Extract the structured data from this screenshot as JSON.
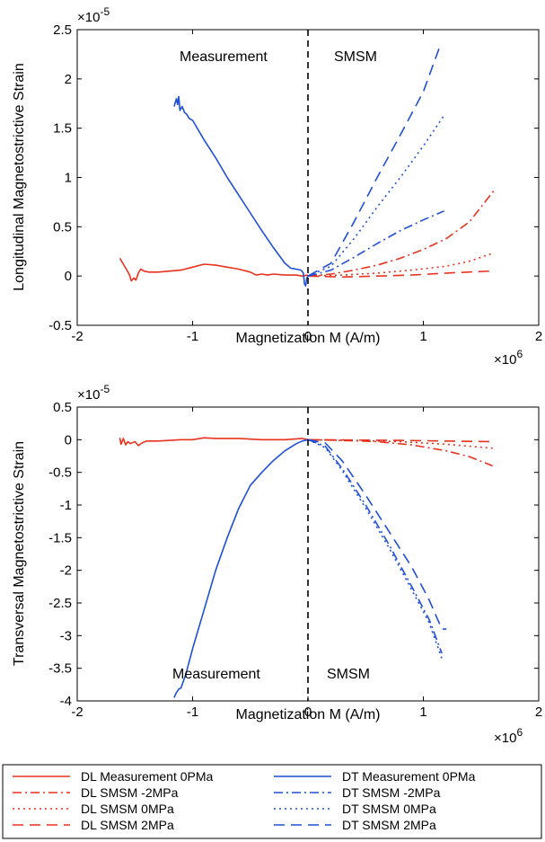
{
  "chart_data": [
    {
      "type": "line",
      "xlabel": "Magnetization M (A/m)",
      "ylabel": "Longitudinal Magnetostrictive Strain",
      "x_exponent_label": "×10",
      "x_exponent_power": "6",
      "y_exponent_label": "×10",
      "y_exponent_power": "-5",
      "xlim": [
        -2,
        2
      ],
      "ylim": [
        -0.5,
        2.5
      ],
      "xticks": [
        "-2",
        "-1",
        "0",
        "1",
        "2"
      ],
      "yticks": [
        "-0.5",
        "0",
        "0.5",
        "1",
        "1.5",
        "2",
        "2.5"
      ],
      "xtick_values": [
        -2,
        -1,
        0,
        1,
        2
      ],
      "ytick_values": [
        -0.5,
        0,
        0.5,
        1,
        1.5,
        2,
        2.5
      ],
      "annotations": {
        "left": "Measurement",
        "right": "SMSM"
      },
      "series": [
        {
          "name": "DL Measurement 0PMa",
          "color": "#e8321e",
          "dash": "solid",
          "points": [
            [
              -1.63,
              0.18
            ],
            [
              -1.6,
              0.12
            ],
            [
              -1.57,
              0.06
            ],
            [
              -1.55,
              0.02
            ],
            [
              -1.53,
              -0.05
            ],
            [
              -1.51,
              -0.02
            ],
            [
              -1.49,
              -0.04
            ],
            [
              -1.47,
              0.03
            ],
            [
              -1.45,
              0.07
            ],
            [
              -1.42,
              0.05
            ],
            [
              -1.38,
              0.04
            ],
            [
              -1.3,
              0.04
            ],
            [
              -1.2,
              0.05
            ],
            [
              -1.1,
              0.06
            ],
            [
              -1.0,
              0.09
            ],
            [
              -0.9,
              0.12
            ],
            [
              -0.8,
              0.11
            ],
            [
              -0.7,
              0.09
            ],
            [
              -0.6,
              0.07
            ],
            [
              -0.5,
              0.04
            ],
            [
              -0.45,
              0.01
            ],
            [
              -0.4,
              0.02
            ],
            [
              -0.35,
              0.01
            ],
            [
              -0.3,
              0.02
            ],
            [
              -0.2,
              0.01
            ],
            [
              -0.1,
              0.01
            ],
            [
              -0.05,
              0.0
            ],
            [
              0,
              0.01
            ]
          ]
        },
        {
          "name": "DL SMSM -2MPa",
          "color": "#e8321e",
          "dash": "dashdot",
          "points": [
            [
              0,
              0
            ],
            [
              0.2,
              0.02
            ],
            [
              0.4,
              0.06
            ],
            [
              0.6,
              0.11
            ],
            [
              0.8,
              0.18
            ],
            [
              1.0,
              0.27
            ],
            [
              1.2,
              0.38
            ],
            [
              1.4,
              0.55
            ],
            [
              1.62,
              0.88
            ]
          ]
        },
        {
          "name": "DL SMSM 0MPa",
          "color": "#e8321e",
          "dash": "dotted",
          "points": [
            [
              0,
              0
            ],
            [
              0.3,
              0.01
            ],
            [
              0.6,
              0.03
            ],
            [
              0.9,
              0.06
            ],
            [
              1.2,
              0.1
            ],
            [
              1.4,
              0.15
            ],
            [
              1.6,
              0.23
            ]
          ]
        },
        {
          "name": "DL SMSM 2MPa",
          "color": "#e8321e",
          "dash": "dashed",
          "points": [
            [
              0,
              0
            ],
            [
              0.3,
              -0.01
            ],
            [
              0.6,
              0.0
            ],
            [
              0.9,
              0.01
            ],
            [
              1.2,
              0.03
            ],
            [
              1.58,
              0.05
            ]
          ]
        },
        {
          "name": "DT Measurement 0PMa",
          "color": "#1f4fd6",
          "dash": "solid",
          "points": [
            [
              -1.16,
              1.72
            ],
            [
              -1.14,
              1.8
            ],
            [
              -1.13,
              1.74
            ],
            [
              -1.12,
              1.82
            ],
            [
              -1.11,
              1.68
            ],
            [
              -1.09,
              1.72
            ],
            [
              -1.07,
              1.66
            ],
            [
              -1.05,
              1.64
            ],
            [
              -1.03,
              1.6
            ],
            [
              -1.0,
              1.58
            ],
            [
              -0.9,
              1.38
            ],
            [
              -0.8,
              1.2
            ],
            [
              -0.7,
              1.0
            ],
            [
              -0.6,
              0.82
            ],
            [
              -0.5,
              0.64
            ],
            [
              -0.4,
              0.46
            ],
            [
              -0.3,
              0.29
            ],
            [
              -0.2,
              0.13
            ],
            [
              -0.15,
              0.08
            ],
            [
              -0.1,
              0.07
            ],
            [
              -0.06,
              0.06
            ],
            [
              -0.04,
              0.03
            ],
            [
              -0.03,
              -0.08
            ],
            [
              -0.02,
              -0.1
            ],
            [
              -0.01,
              -0.02
            ],
            [
              0,
              0.0
            ]
          ]
        },
        {
          "name": "DT SMSM -2MPa",
          "color": "#1f4fd6",
          "dash": "dashdot",
          "points": [
            [
              0,
              0
            ],
            [
              0.2,
              0.06
            ],
            [
              0.4,
              0.19
            ],
            [
              0.6,
              0.33
            ],
            [
              0.8,
              0.46
            ],
            [
              1.0,
              0.57
            ],
            [
              1.18,
              0.66
            ]
          ]
        },
        {
          "name": "DT SMSM 0MPa",
          "color": "#1f4fd6",
          "dash": "dotted",
          "points": [
            [
              0,
              0
            ],
            [
              0.2,
              0.1
            ],
            [
              0.4,
              0.38
            ],
            [
              0.6,
              0.7
            ],
            [
              0.8,
              1.0
            ],
            [
              1.0,
              1.32
            ],
            [
              1.18,
              1.63
            ]
          ]
        },
        {
          "name": "DT SMSM 2MPa",
          "color": "#1f4fd6",
          "dash": "dashed",
          "points": [
            [
              0,
              0
            ],
            [
              0.2,
              0.13
            ],
            [
              0.4,
              0.55
            ],
            [
              0.6,
              1.0
            ],
            [
              0.8,
              1.43
            ],
            [
              1.0,
              1.87
            ],
            [
              1.14,
              2.32
            ],
            [
              1.18,
              2.32
            ]
          ]
        }
      ]
    },
    {
      "type": "line",
      "xlabel": "Magnetization M (A/m)",
      "ylabel": "Transversal Magnetostrictive Strain",
      "x_exponent_label": "×10",
      "x_exponent_power": "6",
      "y_exponent_label": "×10",
      "y_exponent_power": "-5",
      "xlim": [
        -2,
        2
      ],
      "ylim": [
        -4,
        0.5
      ],
      "xticks": [
        "-2",
        "-1",
        "0",
        "1",
        "2"
      ],
      "yticks": [
        "-4",
        "-3.5",
        "-3",
        "-2.5",
        "-2",
        "-1.5",
        "-1",
        "-0.5",
        "0",
        "0.5"
      ],
      "xtick_values": [
        -2,
        -1,
        0,
        1,
        2
      ],
      "ytick_values": [
        -4,
        -3.5,
        -3,
        -2.5,
        -2,
        -1.5,
        -1,
        -0.5,
        0,
        0.5
      ],
      "annotations": {
        "left": "Measurement",
        "right": "SMSM"
      },
      "series": [
        {
          "name": "DL Measurement 0PMa",
          "color": "#e8321e",
          "dash": "solid",
          "points": [
            [
              -1.63,
              0.03
            ],
            [
              -1.62,
              -0.07
            ],
            [
              -1.6,
              0.02
            ],
            [
              -1.58,
              -0.08
            ],
            [
              -1.56,
              -0.03
            ],
            [
              -1.54,
              -0.06
            ],
            [
              -1.5,
              -0.03
            ],
            [
              -1.47,
              -0.09
            ],
            [
              -1.44,
              -0.05
            ],
            [
              -1.4,
              -0.02
            ],
            [
              -1.3,
              -0.02
            ],
            [
              -1.2,
              -0.01
            ],
            [
              -1.1,
              0.0
            ],
            [
              -1.0,
              0.0
            ],
            [
              -0.9,
              0.03
            ],
            [
              -0.8,
              0.02
            ],
            [
              -0.6,
              0.02
            ],
            [
              -0.4,
              0.0
            ],
            [
              -0.2,
              0.0
            ],
            [
              -0.05,
              0.02
            ],
            [
              0,
              0.0
            ]
          ]
        },
        {
          "name": "DL SMSM -2MPa",
          "color": "#e8321e",
          "dash": "dashdot",
          "points": [
            [
              0,
              0
            ],
            [
              0.3,
              -0.01
            ],
            [
              0.6,
              -0.03
            ],
            [
              0.9,
              -0.08
            ],
            [
              1.2,
              -0.17
            ],
            [
              1.4,
              -0.26
            ],
            [
              1.6,
              -0.4
            ]
          ]
        },
        {
          "name": "DL SMSM 0MPa",
          "color": "#e8321e",
          "dash": "dotted",
          "points": [
            [
              0,
              0
            ],
            [
              0.4,
              -0.01
            ],
            [
              0.8,
              -0.03
            ],
            [
              1.2,
              -0.07
            ],
            [
              1.6,
              -0.13
            ]
          ]
        },
        {
          "name": "DL SMSM 2MPa",
          "color": "#e8321e",
          "dash": "dashed",
          "points": [
            [
              0,
              0
            ],
            [
              0.4,
              -0.005
            ],
            [
              0.8,
              -0.01
            ],
            [
              1.2,
              -0.02
            ],
            [
              1.6,
              -0.03
            ]
          ]
        },
        {
          "name": "DT Measurement 0PMa",
          "color": "#1f4fd6",
          "dash": "solid",
          "points": [
            [
              -1.16,
              -3.95
            ],
            [
              -1.14,
              -3.87
            ],
            [
              -1.12,
              -3.82
            ],
            [
              -1.1,
              -3.8
            ],
            [
              -1.06,
              -3.6
            ],
            [
              -1.0,
              -3.2
            ],
            [
              -0.9,
              -2.6
            ],
            [
              -0.8,
              -2.0
            ],
            [
              -0.7,
              -1.5
            ],
            [
              -0.6,
              -1.05
            ],
            [
              -0.5,
              -0.7
            ],
            [
              -0.4,
              -0.5
            ],
            [
              -0.3,
              -0.32
            ],
            [
              -0.2,
              -0.17
            ],
            [
              -0.1,
              -0.06
            ],
            [
              -0.05,
              -0.02
            ],
            [
              0,
              0.0
            ]
          ]
        },
        {
          "name": "DT SMSM -2MPa",
          "color": "#1f4fd6",
          "dash": "dashdot",
          "points": [
            [
              0,
              0
            ],
            [
              0.15,
              -0.1
            ],
            [
              0.3,
              -0.45
            ],
            [
              0.5,
              -1.0
            ],
            [
              0.7,
              -1.6
            ],
            [
              0.9,
              -2.25
            ],
            [
              1.05,
              -2.75
            ],
            [
              1.16,
              -3.27
            ]
          ]
        },
        {
          "name": "DT SMSM 0MPa",
          "color": "#1f4fd6",
          "dash": "dotted",
          "points": [
            [
              0,
              0
            ],
            [
              0.15,
              -0.12
            ],
            [
              0.3,
              -0.48
            ],
            [
              0.5,
              -1.05
            ],
            [
              0.7,
              -1.65
            ],
            [
              0.9,
              -2.3
            ],
            [
              1.05,
              -2.8
            ],
            [
              1.16,
              -3.35
            ]
          ]
        },
        {
          "name": "DT SMSM 2MPa",
          "color": "#1f4fd6",
          "dash": "dashed",
          "points": [
            [
              0,
              0
            ],
            [
              0.15,
              -0.05
            ],
            [
              0.3,
              -0.33
            ],
            [
              0.5,
              -0.85
            ],
            [
              0.7,
              -1.4
            ],
            [
              0.9,
              -1.95
            ],
            [
              1.05,
              -2.45
            ],
            [
              1.16,
              -2.9
            ],
            [
              1.2,
              -2.9
            ]
          ]
        }
      ]
    }
  ],
  "legend": {
    "entries": [
      {
        "label": "DL Measurement 0PMa",
        "color": "#e8321e",
        "dash": "solid"
      },
      {
        "label": "DT Measurement 0PMa",
        "color": "#1f4fd6",
        "dash": "solid"
      },
      {
        "label": "DL SMSM -2MPa",
        "color": "#e8321e",
        "dash": "dashdot"
      },
      {
        "label": "DT SMSM -2MPa",
        "color": "#1f4fd6",
        "dash": "dashdot"
      },
      {
        "label": "DL SMSM 0MPa",
        "color": "#e8321e",
        "dash": "dotted"
      },
      {
        "label": "DT SMSM 0MPa",
        "color": "#1f4fd6",
        "dash": "dotted"
      },
      {
        "label": "DL SMSM 2MPa",
        "color": "#e8321e",
        "dash": "dashed"
      },
      {
        "label": "DT SMSM 2MPa",
        "color": "#1f4fd6",
        "dash": "dashed"
      }
    ]
  }
}
